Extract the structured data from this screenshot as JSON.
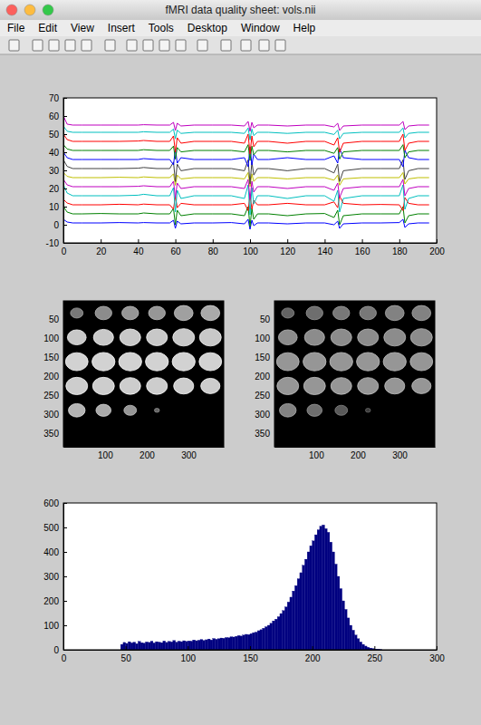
{
  "window": {
    "title": "fMRI data quality sheet: vols.nii",
    "menu": [
      "File",
      "Edit",
      "View",
      "Insert",
      "Tools",
      "Desktop",
      "Window",
      "Help"
    ]
  },
  "chart_data": [
    {
      "type": "line",
      "x": [
        0,
        2,
        5,
        10,
        20,
        30,
        40,
        43,
        50,
        57,
        59,
        60,
        61,
        63,
        70,
        80,
        90,
        97,
        99,
        100,
        101,
        102,
        104,
        110,
        120,
        130,
        140,
        145,
        147,
        148,
        150,
        160,
        170,
        180,
        182,
        183,
        185,
        190,
        196
      ],
      "series": [
        {
          "color": "#0000ff",
          "values": [
            3,
            1.5,
            1,
            1,
            1,
            1.2,
            1,
            1.2,
            1,
            1,
            2.5,
            -2,
            2,
            0.5,
            1,
            1,
            1.2,
            0.5,
            3,
            -2.5,
            2.5,
            -0.5,
            1,
            1,
            0.5,
            1,
            1,
            0,
            2,
            -2,
            0.5,
            1,
            1,
            1.2,
            3,
            -1.5,
            0.5,
            1,
            1
          ]
        },
        {
          "color": "#008000",
          "values": [
            10,
            7,
            6,
            6,
            6.2,
            6,
            6,
            6.5,
            6,
            6,
            9,
            0,
            8,
            5,
            6,
            6,
            6,
            5,
            10,
            -1,
            9,
            3,
            6,
            6,
            5,
            6,
            6.2,
            4,
            8,
            0,
            5,
            6,
            6,
            6,
            10,
            1,
            5,
            6,
            6
          ]
        },
        {
          "color": "#ff0000",
          "values": [
            14,
            12,
            11,
            11,
            11,
            11.3,
            11,
            11.4,
            11,
            11,
            8.6,
            15.8,
            9.4,
            11.8,
            11,
            11,
            11,
            11.8,
            7.8,
            16.6,
            8.6,
            13.4,
            11,
            11,
            11.8,
            11,
            11,
            12.6,
            9.4,
            15.8,
            11.8,
            11,
            11.2,
            11,
            7.8,
            15,
            11.8,
            11,
            11
          ]
        },
        {
          "color": "#00bfbf",
          "values": [
            22,
            17.5,
            16,
            16,
            16,
            16,
            16.3,
            16.8,
            16,
            16,
            20.5,
            7,
            19,
            14.5,
            16,
            16,
            16,
            14.5,
            22,
            5.5,
            20.5,
            11.5,
            16,
            16,
            14.5,
            16,
            16,
            13,
            19,
            7,
            14.5,
            16,
            16,
            16,
            22,
            8.5,
            14.5,
            16,
            16
          ]
        },
        {
          "color": "#bf00bf",
          "values": [
            25,
            22,
            21,
            21,
            21,
            21,
            21.2,
            21.5,
            21,
            21,
            24,
            15,
            23,
            20,
            21,
            21,
            21,
            20,
            25,
            14,
            24,
            18,
            21,
            21,
            20,
            21,
            21,
            19,
            23,
            15,
            20,
            21,
            21,
            21,
            25,
            16,
            20,
            21,
            21
          ]
        },
        {
          "color": "#bfbf00",
          "values": [
            28.8,
            26.7,
            26,
            26,
            26,
            26.2,
            26,
            26.4,
            26,
            26,
            28.1,
            21.8,
            27.4,
            25.3,
            26,
            26,
            26,
            25.3,
            28.8,
            21.1,
            28.1,
            23.9,
            26,
            26,
            25.3,
            26,
            26,
            24.6,
            27.4,
            21.8,
            25.3,
            26,
            26,
            26,
            28.8,
            22.5,
            25.3,
            26,
            26
          ]
        },
        {
          "color": "#404040",
          "values": [
            35.8,
            32.2,
            31,
            31,
            31,
            31,
            31.2,
            31.6,
            31,
            31,
            34.6,
            23.8,
            33.4,
            29.8,
            31,
            31,
            31,
            29.8,
            35.8,
            22.6,
            34.6,
            27.4,
            31,
            31,
            29.8,
            31,
            31,
            28.6,
            33.4,
            23.8,
            29.8,
            31,
            31,
            31,
            35.8,
            25,
            29.8,
            31,
            31
          ]
        },
        {
          "color": "#0000ff",
          "values": [
            40,
            37,
            36,
            36,
            36,
            36,
            36,
            36.5,
            36,
            36,
            33,
            42,
            34,
            37,
            36,
            36,
            36,
            37,
            32,
            43,
            33,
            39,
            36,
            36,
            37,
            36,
            36,
            38,
            34,
            42,
            37,
            36,
            36,
            36,
            32,
            41,
            37,
            36,
            36
          ]
        },
        {
          "color": "#008000",
          "values": [
            44.2,
            41.8,
            41,
            41,
            41,
            41,
            41,
            41.4,
            41,
            41,
            43.4,
            36.2,
            42.6,
            40.2,
            41,
            41,
            41,
            40.2,
            44.2,
            35.4,
            43.4,
            38.6,
            41,
            41,
            40.2,
            41,
            41,
            39.4,
            42.6,
            36.2,
            40.2,
            41,
            41,
            41,
            44.2,
            37,
            40.2,
            41,
            41
          ]
        },
        {
          "color": "#ff0000",
          "values": [
            50,
            47,
            46,
            46,
            46,
            46,
            46.2,
            46.5,
            46,
            46,
            49,
            40,
            48,
            45,
            46,
            46,
            46,
            45,
            50,
            39,
            49,
            43,
            46,
            46,
            45,
            46,
            46,
            44,
            48,
            40,
            45,
            46,
            46,
            46,
            50,
            41,
            45,
            46,
            46
          ]
        },
        {
          "color": "#00bfbf",
          "values": [
            54.4,
            51.6,
            51,
            51,
            51,
            51,
            51,
            51.3,
            51,
            51,
            52.8,
            47.4,
            52.2,
            50.4,
            51,
            51,
            51,
            50.4,
            53.4,
            46.8,
            52.8,
            49.2,
            51,
            51,
            50.4,
            51,
            51,
            49.8,
            52.2,
            47.4,
            50.4,
            51,
            51,
            51,
            53.4,
            48,
            50.4,
            51,
            51
          ]
        },
        {
          "color": "#bf00bf",
          "values": [
            60,
            55.5,
            55,
            55,
            55,
            55,
            55,
            55.2,
            55,
            55,
            56.5,
            52,
            56,
            54.5,
            55,
            55,
            55,
            54.5,
            57,
            51.5,
            56.5,
            53.5,
            55,
            55,
            54.5,
            55,
            55,
            54,
            56,
            52,
            54.5,
            55,
            55,
            55,
            57,
            52.5,
            54.5,
            55,
            55
          ]
        }
      ],
      "xlim": [
        0,
        200
      ],
      "xticks": [
        0,
        20,
        40,
        60,
        80,
        100,
        120,
        140,
        160,
        180,
        200
      ],
      "ylim": [
        -10,
        70
      ],
      "yticks": [
        -10,
        0,
        10,
        20,
        30,
        40,
        50,
        60,
        70
      ]
    },
    {
      "type": "image",
      "cells": [
        [
          120,
          140,
          150,
          150,
          160,
          170
        ],
        [
          200,
          200,
          200,
          200,
          200,
          200
        ],
        [
          210,
          210,
          210,
          210,
          210,
          210
        ],
        [
          205,
          205,
          205,
          205,
          205,
          205
        ],
        [
          180,
          170,
          150,
          100,
          null,
          null
        ],
        [
          null,
          null,
          null,
          null,
          null,
          null
        ]
      ],
      "sizes": [
        [
          30,
          40,
          40,
          40,
          45,
          45
        ],
        [
          45,
          48,
          50,
          50,
          52,
          52
        ],
        [
          54,
          55,
          55,
          55,
          55,
          54
        ],
        [
          52,
          52,
          50,
          50,
          48,
          46
        ],
        [
          40,
          36,
          30,
          12,
          null,
          null
        ],
        [
          null,
          null,
          null,
          null,
          null,
          null
        ]
      ],
      "xlim": [
        0.5,
        384.5
      ],
      "xticks": [
        100,
        200,
        300
      ],
      "ylim": [
        0.5,
        384.5
      ],
      "yticks": [
        50,
        100,
        150,
        200,
        250,
        300,
        350
      ]
    },
    {
      "type": "image",
      "cells": [
        [
          100,
          110,
          120,
          120,
          130,
          130
        ],
        [
          140,
          140,
          140,
          140,
          140,
          140
        ],
        [
          150,
          150,
          150,
          150,
          150,
          150
        ],
        [
          150,
          150,
          150,
          150,
          150,
          150
        ],
        [
          130,
          110,
          90,
          60,
          null,
          null
        ],
        [
          null,
          null,
          null,
          null,
          null,
          null
        ]
      ],
      "sizes": [
        [
          30,
          40,
          40,
          40,
          45,
          45
        ],
        [
          45,
          48,
          50,
          50,
          52,
          52
        ],
        [
          54,
          55,
          55,
          55,
          55,
          54
        ],
        [
          52,
          52,
          50,
          50,
          48,
          46
        ],
        [
          40,
          36,
          30,
          12,
          null,
          null
        ],
        [
          null,
          null,
          null,
          null,
          null,
          null
        ]
      ],
      "xlim": [
        0.5,
        384.5
      ],
      "xticks": [
        100,
        200,
        300
      ],
      "ylim": [
        0.5,
        384.5
      ],
      "yticks": [
        50,
        100,
        150,
        200,
        250,
        300,
        350
      ]
    },
    {
      "type": "histogram",
      "color": "#000080",
      "bins": [
        46,
        48,
        50,
        52,
        54,
        56,
        58,
        60,
        62,
        64,
        66,
        68,
        70,
        72,
        74,
        76,
        78,
        80,
        82,
        84,
        86,
        88,
        90,
        92,
        94,
        96,
        98,
        100,
        102,
        104,
        106,
        108,
        110,
        112,
        114,
        116,
        118,
        120,
        122,
        124,
        126,
        128,
        130,
        132,
        134,
        136,
        138,
        140,
        142,
        144,
        146,
        148,
        150,
        152,
        154,
        156,
        158,
        160,
        162,
        164,
        166,
        168,
        170,
        172,
        174,
        176,
        178,
        180,
        182,
        184,
        186,
        188,
        190,
        192,
        194,
        196,
        198,
        200,
        202,
        204,
        206,
        208,
        210,
        212,
        214,
        216,
        218,
        220,
        222,
        224,
        226,
        228,
        230,
        232,
        234,
        236,
        238,
        240,
        242,
        244,
        246,
        248,
        250,
        252,
        254,
        256
      ],
      "values": [
        22,
        30,
        26,
        33,
        28,
        31,
        25,
        34,
        29,
        27,
        32,
        30,
        35,
        28,
        33,
        31,
        29,
        36,
        30,
        34,
        32,
        38,
        31,
        35,
        33,
        37,
        34,
        36,
        35,
        40,
        37,
        39,
        42,
        38,
        41,
        44,
        40,
        46,
        43,
        45,
        48,
        47,
        50,
        49,
        53,
        52,
        55,
        58,
        56,
        60,
        63,
        62,
        66,
        70,
        72,
        78,
        82,
        88,
        94,
        100,
        108,
        118,
        125,
        135,
        148,
        160,
        175,
        195,
        215,
        240,
        262,
        290,
        315,
        345,
        370,
        400,
        425,
        445,
        470,
        490,
        505,
        510,
        495,
        480,
        440,
        400,
        350,
        300,
        250,
        200,
        165,
        130,
        100,
        80,
        60,
        45,
        32,
        22,
        15,
        10,
        7,
        5,
        3,
        2,
        1
      ],
      "xlim": [
        0,
        300
      ],
      "xticks": [
        0,
        50,
        100,
        150,
        200,
        250,
        300
      ],
      "ylim": [
        0,
        600
      ],
      "yticks": [
        0,
        100,
        200,
        300,
        400,
        500,
        600
      ]
    }
  ]
}
